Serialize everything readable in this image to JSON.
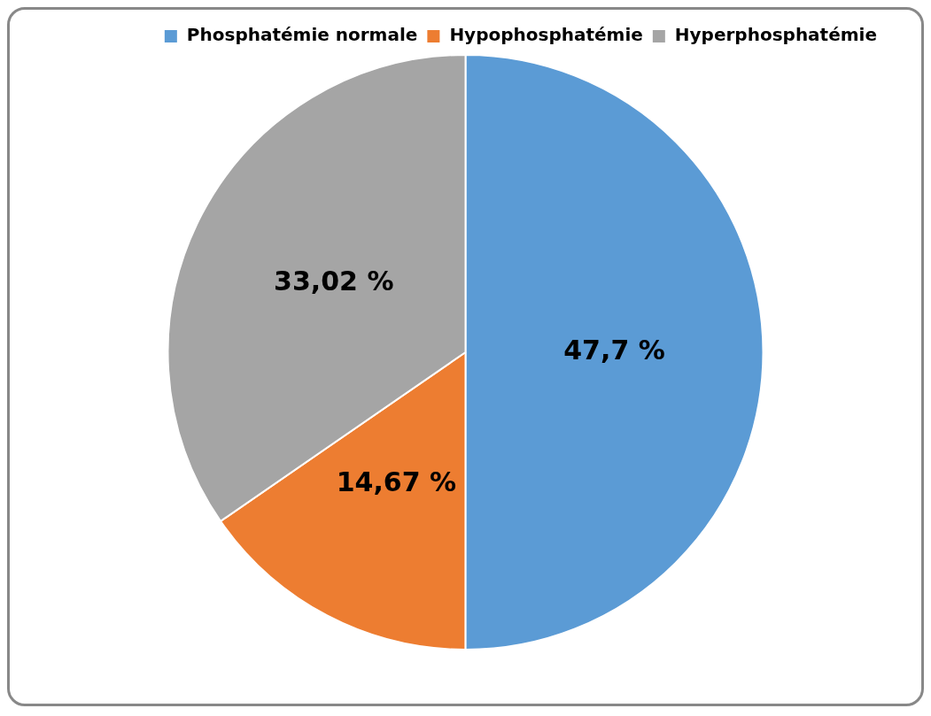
{
  "chart_data": {
    "type": "pie",
    "categories": [
      "Phosphatémie normale",
      "Hypophosphatémie",
      "Hyperphosphatémie"
    ],
    "values": [
      47.7,
      14.67,
      33.02
    ],
    "colors": [
      "#5b9bd5",
      "#ed7d31",
      "#a5a5a5"
    ],
    "value_labels": [
      "47,7 %",
      "14,67 %",
      "33,02 %"
    ],
    "legend": "top right"
  }
}
